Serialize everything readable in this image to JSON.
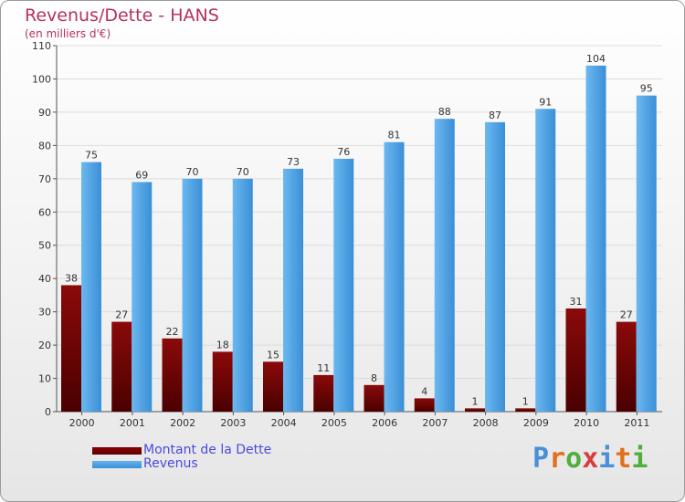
{
  "chart_data": {
    "type": "bar",
    "title": "Revenus/Dette - HANS",
    "subtitle": "(en milliers d'€)",
    "categories": [
      "2000",
      "2001",
      "2002",
      "2003",
      "2004",
      "2005",
      "2006",
      "2007",
      "2008",
      "2009",
      "2010",
      "2011"
    ],
    "series": [
      {
        "name": "Montant de la Dette",
        "values": [
          38,
          27,
          22,
          18,
          15,
          11,
          8,
          4,
          1,
          1,
          31,
          27
        ]
      },
      {
        "name": "Revenus",
        "values": [
          75,
          69,
          70,
          70,
          73,
          76,
          81,
          88,
          87,
          91,
          104,
          95
        ]
      }
    ],
    "ylim": [
      0,
      110
    ],
    "yticks": [
      0,
      10,
      20,
      30,
      40,
      50,
      60,
      70,
      80,
      90,
      100,
      110
    ],
    "grid": true,
    "legend": "bottom-left"
  },
  "colors": {
    "debt_top": "#8b0a0a",
    "debt_bottom": "#4a0000",
    "revenue_top": "#6cb8f0",
    "revenue_bottom": "#3a8fd6",
    "grid": "#dcdcdc",
    "title": "#b5325e"
  },
  "branding": {
    "logo": "Proxiti"
  }
}
